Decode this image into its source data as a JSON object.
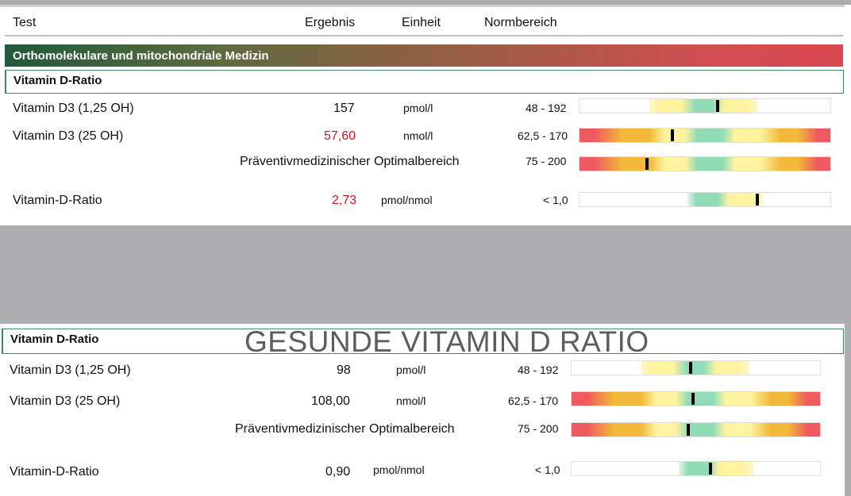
{
  "header": {
    "test": "Test",
    "result": "Ergebnis",
    "unit": "Einheit",
    "range": "Normbereich"
  },
  "category": "Orthomolekulare und mitochondriale Medizin",
  "group_label": "Vitamin D-Ratio",
  "overlay_title": "GESUNDE VITAMIN D RATIO",
  "colors": {
    "red": "#ee5a60",
    "orange": "#f2b93a",
    "yellow": "#fff3a0",
    "green": "#8fdcb6",
    "marker": "#000000",
    "abnormal": "#e0101a"
  },
  "top": {
    "rows": [
      {
        "name": "Vitamin D3 (1,25 OH)",
        "value": "157",
        "unit": "pmol/l",
        "range": "48 - 192",
        "flag": false,
        "scale": "yellow-green-yellow",
        "marker_pct": 0.55
      },
      {
        "name": "Vitamin D3 (25 OH)",
        "value": "57,60",
        "unit": "nmol/l",
        "range": "62,5 - 170",
        "flag": true,
        "scale": "red-yellow-green-yellow-red",
        "marker_pct": 0.37
      },
      {
        "name": "Präventivmedizinischer Optimalbereich",
        "value": "",
        "unit": "",
        "range": "75 - 200",
        "flag": false,
        "scale": "red-yellow-green-yellow-red",
        "marker_pct": 0.27
      },
      {
        "name": "Vitamin-D-Ratio",
        "value": "2,73",
        "unit": "pmol/nmol",
        "range": "< 1,0",
        "flag": true,
        "scale": "green-yellow",
        "marker_pct": 0.71
      }
    ]
  },
  "bottom": {
    "rows": [
      {
        "name": "Vitamin D3 (1,25 OH)",
        "value": "98",
        "unit": "pmol/l",
        "range": "48 - 192",
        "flag": false,
        "scale": "yellow-green-yellow",
        "marker_pct": 0.48
      },
      {
        "name": "Vitamin D3 (25 OH)",
        "value": "108,00",
        "unit": "nmol/l",
        "range": "62,5 - 170",
        "flag": false,
        "scale": "red-yellow-green-yellow-red",
        "marker_pct": 0.49
      },
      {
        "name": "Präventivmedizinischer Optimalbereich",
        "value": "",
        "unit": "",
        "range": "75 - 200",
        "flag": false,
        "scale": "red-yellow-green-yellow-red",
        "marker_pct": 0.47
      },
      {
        "name": "Vitamin-D-Ratio",
        "value": "0,90",
        "unit": "pmol/nmol",
        "range": "< 1,0",
        "flag": false,
        "scale": "green-yellow",
        "marker_pct": 0.56
      }
    ]
  }
}
